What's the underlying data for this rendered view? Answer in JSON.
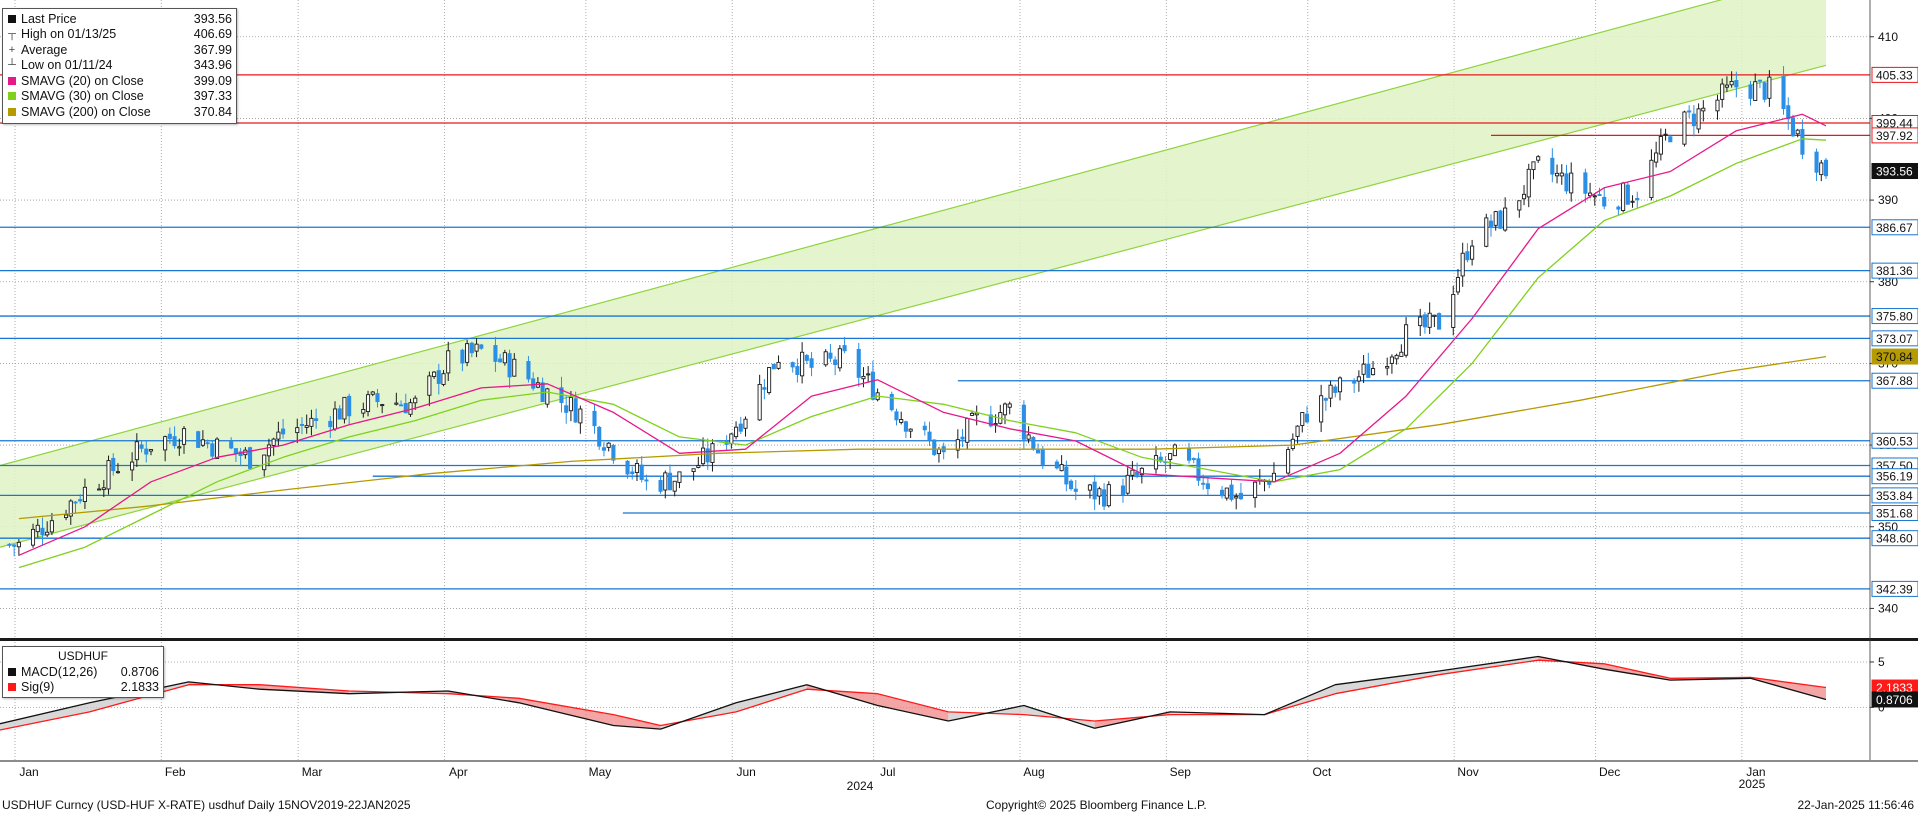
{
  "legend": {
    "items": [
      {
        "label": "Last Price",
        "value": "393.56",
        "marker": "square",
        "color": "#111111"
      },
      {
        "label": "High on 01/13/25",
        "value": "406.69",
        "marker": "high-tick",
        "color": "#555555"
      },
      {
        "label": "Average",
        "value": "367.99",
        "marker": "plus",
        "color": "#555555"
      },
      {
        "label": "Low on 01/11/24",
        "value": "343.96",
        "marker": "low-tick",
        "color": "#555555"
      },
      {
        "label": "SMAVG (20)  on Close",
        "value": "399.09",
        "marker": "square",
        "color": "#e8178a"
      },
      {
        "label": "SMAVG (30)  on Close",
        "value": "397.33",
        "marker": "square",
        "color": "#7fd11b"
      },
      {
        "label": "SMAVG (200)  on Close",
        "value": "370.84",
        "marker": "square",
        "color": "#b59a00"
      }
    ]
  },
  "macd_legend": {
    "title": "USDHUF",
    "items": [
      {
        "label": "MACD(12,26)",
        "value": "0.8706",
        "color": "#111111"
      },
      {
        "label": "Sig(9)",
        "value": "2.1833",
        "color": "#ff1a1a"
      }
    ]
  },
  "footer": {
    "left": "USDHUF Curncy (USD-HUF X-RATE) usdhuf  Daily 15NOV2019-22JAN2025",
    "center": "Copyright© 2025 Bloomberg Finance L.P.",
    "right": "22-Jan-2025 11:56:46"
  },
  "colors": {
    "up": "#1a1a1a",
    "down": "#2b8fe6",
    "sma20": "#e8178a",
    "sma30": "#7fd11b",
    "sma200": "#b59a00",
    "level_red": "#e8171b",
    "level_blue": "#1976d2",
    "channel": "#dff3c6",
    "channel_line": "#8fd43d",
    "macd": "#111111",
    "signal": "#ff1a1a"
  },
  "chart_data": {
    "type": "candlestick",
    "time_range": [
      "2024-01-01",
      "2025-01-22"
    ],
    "year_label": "2024",
    "x_months": [
      {
        "label": "Jan",
        "date": "2024-01-01"
      },
      {
        "label": "Feb",
        "date": "2024-02-01"
      },
      {
        "label": "Mar",
        "date": "2024-03-01"
      },
      {
        "label": "Apr",
        "date": "2024-04-01"
      },
      {
        "label": "May",
        "date": "2024-05-01"
      },
      {
        "label": "Jun",
        "date": "2024-06-01"
      },
      {
        "label": "Jul",
        "date": "2024-07-01"
      },
      {
        "label": "Aug",
        "date": "2024-08-01"
      },
      {
        "label": "Sep",
        "date": "2024-09-01"
      },
      {
        "label": "Oct",
        "date": "2024-10-01"
      },
      {
        "label": "Nov",
        "date": "2024-11-01"
      },
      {
        "label": "Dec",
        "date": "2024-12-01"
      },
      {
        "label": "Jan\n2025",
        "date": "2025-01-01"
      }
    ],
    "y_main": {
      "range": [
        336.5,
        414.5
      ],
      "ticks": [
        340,
        350,
        360,
        370,
        380,
        390,
        400,
        410
      ]
    },
    "y_macd": {
      "range": [
        -5.8,
        7.2
      ],
      "ticks": [
        5,
        0
      ]
    },
    "closes_weekly": [
      [
        "2024-01-05",
        347.8
      ],
      [
        "2024-01-12",
        351.0
      ],
      [
        "2024-01-19",
        354.5
      ],
      [
        "2024-01-26",
        357.5
      ],
      [
        "2024-02-02",
        360.2
      ],
      [
        "2024-02-09",
        361.5
      ],
      [
        "2024-02-16",
        359.8
      ],
      [
        "2024-02-23",
        358.5
      ],
      [
        "2024-03-01",
        361.5
      ],
      [
        "2024-03-08",
        363.0
      ],
      [
        "2024-03-15",
        364.6
      ],
      [
        "2024-03-22",
        365.5
      ],
      [
        "2024-03-29",
        365.0
      ],
      [
        "2024-04-05",
        370.2
      ],
      [
        "2024-04-12",
        371.5
      ],
      [
        "2024-04-19",
        369.5
      ],
      [
        "2024-04-26",
        366.5
      ],
      [
        "2024-05-03",
        364.0
      ],
      [
        "2024-05-10",
        359.5
      ],
      [
        "2024-05-17",
        355.3
      ],
      [
        "2024-05-24",
        356.0
      ],
      [
        "2024-05-31",
        359.0
      ],
      [
        "2024-06-07",
        364.0
      ],
      [
        "2024-06-14",
        371.0
      ],
      [
        "2024-06-21",
        369.5
      ],
      [
        "2024-06-28",
        370.5
      ],
      [
        "2024-07-05",
        366.5
      ],
      [
        "2024-07-12",
        362.5
      ],
      [
        "2024-07-19",
        358.5
      ],
      [
        "2024-07-26",
        363.0
      ],
      [
        "2024-08-02",
        364.5
      ],
      [
        "2024-08-09",
        358.5
      ],
      [
        "2024-08-16",
        354.3
      ],
      [
        "2024-08-23",
        354.0
      ],
      [
        "2024-08-30",
        356.5
      ],
      [
        "2024-09-06",
        358.5
      ],
      [
        "2024-09-13",
        355.5
      ],
      [
        "2024-09-20",
        353.5
      ],
      [
        "2024-09-27",
        356.5
      ],
      [
        "2024-10-04",
        364.0
      ],
      [
        "2024-10-11",
        367.0
      ],
      [
        "2024-10-18",
        369.5
      ],
      [
        "2024-10-25",
        373.5
      ],
      [
        "2024-11-01",
        375.0
      ],
      [
        "2024-11-08",
        385.5
      ],
      [
        "2024-11-15",
        388.0
      ],
      [
        "2024-11-22",
        394.0
      ],
      [
        "2024-11-29",
        392.0
      ],
      [
        "2024-12-06",
        390.0
      ],
      [
        "2024-12-13",
        391.0
      ],
      [
        "2024-12-20",
        398.5
      ],
      [
        "2024-12-27",
        401.0
      ],
      [
        "2025-01-03",
        404.0
      ],
      [
        "2025-01-10",
        403.5
      ],
      [
        "2025-01-17",
        397.0
      ],
      [
        "2025-01-22",
        393.56
      ]
    ],
    "sma20_weekly": [
      [
        "2024-01-05",
        346.5
      ],
      [
        "2024-01-19",
        350.0
      ],
      [
        "2024-02-02",
        355.5
      ],
      [
        "2024-02-16",
        358.5
      ],
      [
        "2024-03-01",
        360.0
      ],
      [
        "2024-03-15",
        362.5
      ],
      [
        "2024-03-29",
        364.5
      ],
      [
        "2024-04-12",
        367.0
      ],
      [
        "2024-04-26",
        367.5
      ],
      [
        "2024-05-10",
        364.0
      ],
      [
        "2024-05-24",
        359.0
      ],
      [
        "2024-06-07",
        359.5
      ],
      [
        "2024-06-21",
        366.0
      ],
      [
        "2024-07-05",
        368.0
      ],
      [
        "2024-07-19",
        364.0
      ],
      [
        "2024-08-02",
        362.0
      ],
      [
        "2024-08-16",
        360.5
      ],
      [
        "2024-08-30",
        356.5
      ],
      [
        "2024-09-13",
        356.0
      ],
      [
        "2024-09-27",
        355.5
      ],
      [
        "2024-10-11",
        359.0
      ],
      [
        "2024-10-25",
        366.0
      ],
      [
        "2024-11-08",
        375.5
      ],
      [
        "2024-11-22",
        386.5
      ],
      [
        "2024-12-06",
        391.5
      ],
      [
        "2024-12-20",
        393.5
      ],
      [
        "2025-01-03",
        398.5
      ],
      [
        "2025-01-17",
        400.5
      ],
      [
        "2025-01-22",
        399.09
      ]
    ],
    "sma30_weekly": [
      [
        "2024-01-05",
        345.0
      ],
      [
        "2024-01-19",
        347.5
      ],
      [
        "2024-02-02",
        351.5
      ],
      [
        "2024-02-16",
        355.5
      ],
      [
        "2024-03-01",
        358.5
      ],
      [
        "2024-03-15",
        361.0
      ],
      [
        "2024-03-29",
        363.0
      ],
      [
        "2024-04-12",
        365.5
      ],
      [
        "2024-04-26",
        366.5
      ],
      [
        "2024-05-10",
        365.0
      ],
      [
        "2024-05-24",
        361.0
      ],
      [
        "2024-06-07",
        360.0
      ],
      [
        "2024-06-21",
        363.5
      ],
      [
        "2024-07-05",
        366.0
      ],
      [
        "2024-07-19",
        365.0
      ],
      [
        "2024-08-02",
        363.0
      ],
      [
        "2024-08-16",
        361.5
      ],
      [
        "2024-08-30",
        358.5
      ],
      [
        "2024-09-13",
        357.0
      ],
      [
        "2024-09-27",
        355.5
      ],
      [
        "2024-10-11",
        357.0
      ],
      [
        "2024-10-25",
        362.0
      ],
      [
        "2024-11-08",
        370.0
      ],
      [
        "2024-11-22",
        380.5
      ],
      [
        "2024-12-06",
        387.5
      ],
      [
        "2024-12-20",
        390.5
      ],
      [
        "2025-01-03",
        394.5
      ],
      [
        "2025-01-17",
        397.5
      ],
      [
        "2025-01-22",
        397.33
      ]
    ],
    "sma200_weekly": [
      [
        "2024-01-05",
        351.0
      ],
      [
        "2024-02-01",
        352.5
      ],
      [
        "2024-03-01",
        354.5
      ],
      [
        "2024-04-01",
        356.5
      ],
      [
        "2024-05-01",
        358.0
      ],
      [
        "2024-06-01",
        359.0
      ],
      [
        "2024-07-01",
        359.5
      ],
      [
        "2024-08-01",
        359.5
      ],
      [
        "2024-09-01",
        359.5
      ],
      [
        "2024-10-01",
        360.0
      ],
      [
        "2024-11-01",
        362.5
      ],
      [
        "2024-12-01",
        365.5
      ],
      [
        "2025-01-01",
        369.0
      ],
      [
        "2025-01-22",
        370.84
      ]
    ],
    "channel": {
      "lower": [
        [
          "2024-01-01",
          347.5
        ],
        [
          "2025-01-22",
          406.5
        ]
      ],
      "upper": [
        [
          "2024-01-01",
          357.5
        ],
        [
          "2025-01-22",
          418.0
        ]
      ]
    },
    "levels": [
      {
        "value": 405.33,
        "label": "405.33",
        "color": "red",
        "from": "2024-01-01"
      },
      {
        "value": 399.44,
        "label": "399.44",
        "color": "red",
        "from": "2024-01-01"
      },
      {
        "value": 397.92,
        "label": "397.92",
        "color": "red",
        "from": "2024-11-12"
      },
      {
        "value": 386.67,
        "label": "386.67",
        "color": "blue",
        "from": "2024-01-01"
      },
      {
        "value": 381.36,
        "label": "381.36",
        "color": "blue",
        "from": "2024-01-01"
      },
      {
        "value": 375.8,
        "label": "375.80",
        "color": "blue",
        "from": "2024-01-01"
      },
      {
        "value": 373.07,
        "label": "373.07",
        "color": "blue",
        "from": "2024-01-01"
      },
      {
        "value": 367.88,
        "label": "367.88",
        "color": "blue",
        "from": "2024-07-22"
      },
      {
        "value": 360.53,
        "label": "360.53",
        "color": "blue",
        "from": "2024-01-01"
      },
      {
        "value": 357.5,
        "label": "357.50",
        "color": "blue",
        "from": "2024-01-01"
      },
      {
        "value": 356.19,
        "label": "356.19",
        "color": "blue",
        "from": "2024-03-20"
      },
      {
        "value": 353.84,
        "label": "353.84",
        "color": "blue",
        "from": "2024-01-01"
      },
      {
        "value": 351.68,
        "label": "351.68",
        "color": "blue",
        "from": "2024-05-12"
      },
      {
        "value": 348.6,
        "label": "348.60",
        "color": "blue",
        "from": "2024-01-01"
      },
      {
        "value": 342.39,
        "label": "342.39",
        "color": "blue",
        "from": "2024-01-01"
      }
    ],
    "price_tags": [
      {
        "value": 393.56,
        "label": "393.56",
        "kind": "last"
      },
      {
        "value": 370.84,
        "label": "370.84",
        "kind": "sma200"
      }
    ],
    "macd_series": [
      [
        "2024-01-01",
        -1.8
      ],
      [
        "2024-01-20",
        0.5
      ],
      [
        "2024-02-10",
        2.8
      ],
      [
        "2024-02-25",
        2.0
      ],
      [
        "2024-03-15",
        1.5
      ],
      [
        "2024-04-05",
        1.8
      ],
      [
        "2024-04-20",
        0.5
      ],
      [
        "2024-05-10",
        -2.0
      ],
      [
        "2024-05-20",
        -2.4
      ],
      [
        "2024-06-05",
        0.5
      ],
      [
        "2024-06-20",
        2.5
      ],
      [
        "2024-07-05",
        0.2
      ],
      [
        "2024-07-20",
        -1.5
      ],
      [
        "2024-08-05",
        0.2
      ],
      [
        "2024-08-20",
        -2.3
      ],
      [
        "2024-09-05",
        -0.5
      ],
      [
        "2024-09-25",
        -0.8
      ],
      [
        "2024-10-10",
        2.5
      ],
      [
        "2024-11-01",
        4.0
      ],
      [
        "2024-11-22",
        5.6
      ],
      [
        "2024-12-06",
        4.2
      ],
      [
        "2024-12-20",
        3.0
      ],
      [
        "2025-01-06",
        3.2
      ],
      [
        "2025-01-22",
        0.8706
      ]
    ],
    "signal_series": [
      [
        "2024-01-01",
        -2.5
      ],
      [
        "2024-01-20",
        -0.5
      ],
      [
        "2024-02-10",
        2.5
      ],
      [
        "2024-02-25",
        2.5
      ],
      [
        "2024-03-15",
        1.8
      ],
      [
        "2024-04-05",
        1.5
      ],
      [
        "2024-04-20",
        1.0
      ],
      [
        "2024-05-10",
        -0.8
      ],
      [
        "2024-05-20",
        -2.0
      ],
      [
        "2024-06-05",
        -0.5
      ],
      [
        "2024-06-20",
        2.0
      ],
      [
        "2024-07-05",
        1.5
      ],
      [
        "2024-07-20",
        -0.5
      ],
      [
        "2024-08-05",
        -0.8
      ],
      [
        "2024-08-20",
        -1.5
      ],
      [
        "2024-09-05",
        -0.8
      ],
      [
        "2024-09-25",
        -0.8
      ],
      [
        "2024-10-10",
        1.5
      ],
      [
        "2024-11-01",
        3.6
      ],
      [
        "2024-11-22",
        5.2
      ],
      [
        "2024-12-06",
        4.8
      ],
      [
        "2024-12-20",
        3.2
      ],
      [
        "2025-01-06",
        3.3
      ],
      [
        "2025-01-22",
        2.1833
      ]
    ],
    "macd_tags": [
      {
        "value": 2.1833,
        "label": "2.1833",
        "kind": "signal"
      },
      {
        "value": 0.8706,
        "label": "0.8706",
        "kind": "macd"
      }
    ]
  }
}
